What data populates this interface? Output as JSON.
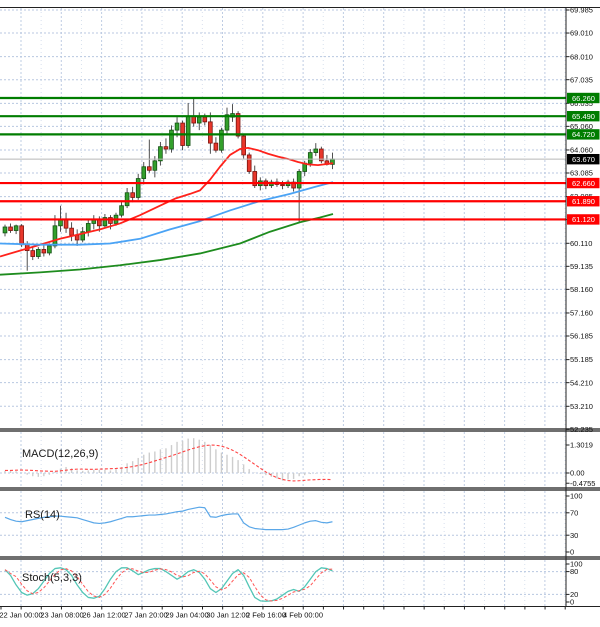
{
  "indicators": {
    "macd": {
      "label": "MACD(12,26,9)"
    },
    "rsi": {
      "label": "RS(14)"
    },
    "stoch": {
      "label": "Stoch(5,3,3)"
    }
  },
  "colors": {
    "grid": "#b8c7e0",
    "bull_fill": "#33a02c",
    "bull_border": "#145214",
    "bear_fill": "#e8372c",
    "bear_border": "#7a120c",
    "wick": "#3c3c3c",
    "ma_fast": "#ff221b",
    "ma_mid": "#4aa3f5",
    "ma_slow": "#1e8c1e",
    "resistance": "#007d00",
    "support": "#ff0000",
    "current_line": "#b8b8b8",
    "current_box": "#000000",
    "hist": "#cdcdcd",
    "signal": "#ff4444",
    "rsi_line": "#5aa7e8",
    "stoch_k": "#53c6b6",
    "stoch_d": "#ff5555",
    "separator": "#6f6f6f",
    "axis_text": "#111111",
    "border": "#222222"
  },
  "chart_data": [
    {
      "type": "candlestick",
      "title": "",
      "timeframe_note": "H4 bars, 22 Jan - 4 Feb",
      "ylim": [
        52.235,
        69.985
      ],
      "grid": true,
      "price_axis_labels": [
        "69.985",
        "69.010",
        "68.010",
        "67.035",
        "66.035",
        "65.060",
        "64.060",
        "63.085",
        "62.085",
        "61.110",
        "60.110",
        "59.135",
        "58.160",
        "57.160",
        "56.185",
        "55.185",
        "54.210",
        "53.210",
        "52.235"
      ],
      "time_axis_labels": [
        "22 Jan 00:00",
        "23 Jan 08:00",
        "26 Jan 12:00",
        "27 Jan 20:00",
        "29 Jan 04:00",
        "30 Jan 12:00",
        "2 Feb 16:00",
        "4 Feb 00:00"
      ],
      "time_label_x": [
        21,
        62,
        104,
        146,
        187,
        228,
        266,
        303
      ],
      "levels": [
        {
          "label": "66.260",
          "value": 66.26,
          "kind": "resistance"
        },
        {
          "label": "65.490",
          "value": 65.49,
          "kind": "resistance"
        },
        {
          "label": "64.720",
          "value": 64.72,
          "kind": "resistance"
        },
        {
          "label": "62.660",
          "value": 62.66,
          "kind": "support"
        },
        {
          "label": "61.890",
          "value": 61.89,
          "kind": "support"
        },
        {
          "label": "61.120",
          "value": 61.12,
          "kind": "support"
        }
      ],
      "current_price": {
        "label": "63.670",
        "value": 63.67
      },
      "moving_averages": [
        {
          "name": "ma-fast-red",
          "points": [
            [
              0,
              59.55
            ],
            [
              20,
              59.8
            ],
            [
              40,
              60.05
            ],
            [
              60,
              60.3
            ],
            [
              80,
              60.5
            ],
            [
              100,
              60.7
            ],
            [
              120,
              60.95
            ],
            [
              140,
              61.3
            ],
            [
              160,
              61.7
            ],
            [
              175,
              62.0
            ],
            [
              190,
              62.2
            ],
            [
              200,
              62.35
            ],
            [
              210,
              62.8
            ],
            [
              220,
              63.35
            ],
            [
              230,
              63.85
            ],
            [
              240,
              64.1
            ],
            [
              248,
              64.15
            ],
            [
              258,
              64.05
            ],
            [
              268,
              63.9
            ],
            [
              278,
              63.78
            ],
            [
              288,
              63.68
            ],
            [
              298,
              63.55
            ],
            [
              308,
              63.45
            ],
            [
              318,
              63.42
            ],
            [
              326,
              63.46
            ],
            [
              333,
              63.5
            ]
          ]
        },
        {
          "name": "ma-mid-blue",
          "points": [
            [
              0,
              60.1
            ],
            [
              40,
              60.05
            ],
            [
              80,
              60.05
            ],
            [
              110,
              60.1
            ],
            [
              140,
              60.3
            ],
            [
              170,
              60.7
            ],
            [
              200,
              61.05
            ],
            [
              230,
              61.5
            ],
            [
              260,
              61.9
            ],
            [
              290,
              62.2
            ],
            [
              315,
              62.5
            ],
            [
              333,
              62.7
            ]
          ]
        },
        {
          "name": "ma-slow-green",
          "points": [
            [
              0,
              58.78
            ],
            [
              40,
              58.88
            ],
            [
              80,
              59.0
            ],
            [
              120,
              59.18
            ],
            [
              160,
              59.4
            ],
            [
              200,
              59.68
            ],
            [
              240,
              60.1
            ],
            [
              270,
              60.6
            ],
            [
              300,
              61.0
            ],
            [
              320,
              61.2
            ],
            [
              333,
              61.35
            ]
          ]
        }
      ],
      "candles": [
        [
          60.55,
          60.9,
          60.4,
          60.8
        ],
        [
          60.8,
          60.95,
          60.55,
          60.65
        ],
        [
          60.65,
          60.9,
          60.5,
          60.85
        ],
        [
          60.85,
          60.92,
          59.95,
          60.05
        ],
        [
          60.05,
          60.2,
          58.95,
          59.8
        ],
        [
          59.8,
          59.95,
          59.4,
          59.55
        ],
        [
          59.55,
          59.95,
          59.45,
          59.85
        ],
        [
          59.85,
          60.05,
          59.55,
          59.7
        ],
        [
          59.7,
          60.1,
          59.6,
          60.0
        ],
        [
          60.0,
          61.3,
          59.9,
          60.85
        ],
        [
          60.85,
          61.7,
          60.6,
          61.1
        ],
        [
          61.1,
          61.4,
          60.55,
          60.75
        ],
        [
          60.75,
          61.0,
          60.2,
          60.45
        ],
        [
          60.45,
          60.7,
          60.0,
          60.25
        ],
        [
          60.25,
          60.8,
          60.15,
          60.6
        ],
        [
          60.6,
          61.1,
          60.4,
          60.95
        ],
        [
          60.95,
          61.3,
          60.7,
          61.1
        ],
        [
          61.1,
          61.25,
          60.6,
          60.85
        ],
        [
          60.85,
          61.35,
          60.75,
          61.2
        ],
        [
          61.2,
          61.3,
          60.7,
          60.95
        ],
        [
          60.95,
          61.4,
          60.85,
          61.3
        ],
        [
          61.3,
          61.85,
          61.2,
          61.7
        ],
        [
          61.7,
          62.45,
          61.6,
          62.25
        ],
        [
          62.25,
          62.5,
          61.85,
          62.05
        ],
        [
          62.05,
          63.05,
          61.95,
          62.85
        ],
        [
          62.85,
          63.55,
          62.6,
          63.35
        ],
        [
          63.35,
          64.5,
          63.1,
          63.2
        ],
        [
          63.2,
          63.8,
          62.9,
          63.6
        ],
        [
          63.6,
          64.4,
          63.4,
          64.2
        ],
        [
          64.2,
          64.55,
          63.9,
          64.1
        ],
        [
          64.1,
          65.1,
          63.95,
          64.9
        ],
        [
          64.9,
          65.45,
          64.6,
          65.2
        ],
        [
          65.2,
          65.3,
          64.05,
          64.25
        ],
        [
          64.25,
          66.05,
          64.15,
          65.5
        ],
        [
          65.5,
          66.26,
          65.05,
          65.2
        ],
        [
          65.2,
          65.65,
          64.9,
          65.45
        ],
        [
          65.45,
          65.6,
          65.1,
          65.25
        ],
        [
          65.25,
          65.65,
          63.9,
          64.35
        ],
        [
          64.35,
          64.6,
          63.95,
          64.05
        ],
        [
          64.05,
          65.0,
          63.95,
          64.9
        ],
        [
          64.9,
          65.85,
          64.7,
          65.55
        ],
        [
          65.45,
          66.0,
          65.25,
          65.6
        ],
        [
          65.6,
          65.7,
          64.55,
          64.65
        ],
        [
          64.65,
          64.75,
          63.7,
          63.85
        ],
        [
          63.85,
          63.95,
          63.05,
          63.15
        ],
        [
          63.15,
          63.4,
          62.45,
          62.55
        ],
        [
          62.55,
          62.9,
          62.35,
          62.75
        ],
        [
          62.75,
          62.85,
          62.4,
          62.55
        ],
        [
          62.55,
          62.8,
          62.45,
          62.7
        ],
        [
          62.7,
          62.85,
          62.5,
          62.6
        ],
        [
          62.6,
          62.75,
          62.4,
          62.55
        ],
        [
          62.55,
          62.8,
          62.45,
          62.7
        ],
        [
          62.7,
          62.85,
          62.3,
          62.45
        ],
        [
          62.45,
          63.25,
          61.0,
          63.15
        ],
        [
          63.15,
          63.6,
          62.95,
          63.5
        ],
        [
          63.5,
          64.1,
          63.35,
          63.95
        ],
        [
          63.95,
          64.35,
          63.8,
          64.1
        ],
        [
          64.1,
          64.2,
          63.5,
          63.6
        ],
        [
          63.6,
          63.85,
          63.4,
          63.45
        ],
        [
          63.45,
          63.95,
          63.25,
          63.67
        ]
      ]
    },
    {
      "type": "bar",
      "name": "MACD(12,26,9)",
      "axis_labels": [
        "1.3019",
        "0.00",
        "-0.4755"
      ],
      "axis_values": [
        1.3019,
        0.0,
        -0.4755
      ],
      "histogram": [
        0.1,
        0.12,
        0.08,
        0.02,
        -0.08,
        -0.15,
        -0.18,
        -0.15,
        -0.08,
        0.05,
        0.2,
        0.28,
        0.22,
        0.12,
        0.1,
        0.12,
        0.15,
        0.15,
        0.15,
        0.12,
        0.18,
        0.28,
        0.45,
        0.55,
        0.7,
        0.85,
        0.95,
        1.0,
        1.1,
        1.15,
        1.3,
        1.45,
        1.5,
        1.6,
        1.62,
        1.55,
        1.45,
        1.3,
        1.1,
        0.95,
        0.85,
        0.75,
        0.6,
        0.4,
        0.18,
        0.02,
        -0.05,
        -0.1,
        -0.18,
        -0.25,
        -0.35,
        -0.3,
        -0.28,
        -0.15,
        -0.1,
        -0.05,
        -0.03,
        -0.02,
        0.0,
        0.02
      ],
      "signal": [
        0.12,
        0.12,
        0.13,
        0.14,
        0.13,
        0.12,
        0.1,
        0.09,
        0.08,
        0.08,
        0.1,
        0.13,
        0.16,
        0.18,
        0.18,
        0.17,
        0.17,
        0.18,
        0.19,
        0.2,
        0.21,
        0.23,
        0.26,
        0.3,
        0.35,
        0.41,
        0.48,
        0.56,
        0.64,
        0.72,
        0.8,
        0.89,
        0.98,
        1.07,
        1.15,
        1.22,
        1.27,
        1.3,
        1.29,
        1.25,
        1.17,
        1.06,
        0.92,
        0.76,
        0.58,
        0.4,
        0.22,
        0.05,
        -0.1,
        -0.22,
        -0.3,
        -0.35,
        -0.37,
        -0.36,
        -0.34,
        -0.32,
        -0.31,
        -0.3,
        -0.3,
        -0.31
      ]
    },
    {
      "type": "line",
      "name": "RS(14)",
      "axis_labels": [
        "100",
        "70",
        "30",
        "0"
      ],
      "axis_values": [
        100,
        70,
        30,
        0
      ],
      "ylim": [
        0,
        100
      ],
      "values": [
        62,
        58,
        55,
        54,
        56,
        58,
        60,
        62,
        63,
        64,
        64,
        63,
        62,
        61,
        58,
        55,
        52,
        51,
        52,
        54,
        57,
        60,
        63,
        63,
        64,
        65,
        66,
        66,
        67,
        68,
        70,
        72,
        73,
        76,
        78,
        80,
        79,
        63,
        62,
        65,
        67,
        68,
        68,
        52,
        45,
        42,
        41,
        40,
        40,
        40,
        40,
        41,
        44,
        48,
        52,
        55,
        56,
        53,
        52,
        54
      ]
    },
    {
      "type": "line",
      "name": "Stoch(5,3,3)",
      "axis_labels": [
        "100",
        "80",
        "20",
        "0"
      ],
      "axis_values": [
        100,
        80,
        20,
        0
      ],
      "ylim": [
        0,
        100
      ],
      "k": [
        85,
        70,
        45,
        25,
        18,
        22,
        35,
        55,
        75,
        88,
        90,
        85,
        70,
        45,
        25,
        12,
        10,
        15,
        35,
        60,
        80,
        90,
        90,
        82,
        72,
        78,
        85,
        88,
        88,
        80,
        70,
        60,
        68,
        80,
        85,
        78,
        60,
        35,
        25,
        35,
        55,
        75,
        85,
        70,
        40,
        12,
        3,
        2,
        3,
        8,
        18,
        28,
        33,
        28,
        40,
        60,
        80,
        90,
        88,
        82
      ]
    }
  ]
}
